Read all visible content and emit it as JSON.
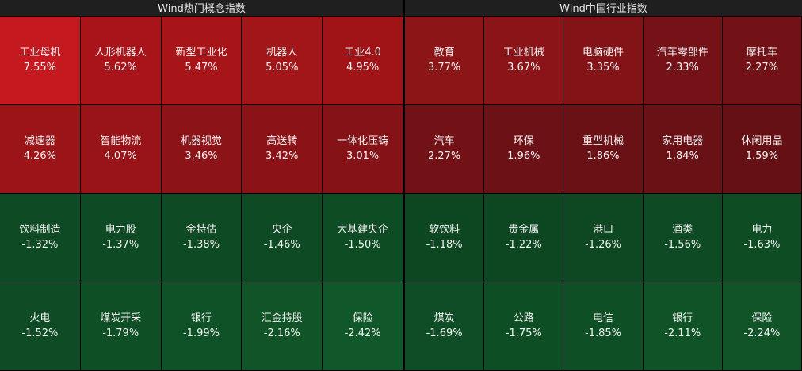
{
  "left_panel": {
    "title": "Wind热门概念指数",
    "tiles": [
      {
        "name": "工业母机",
        "pct": "7.55%",
        "color": "#c41a1f"
      },
      {
        "name": "人形机器人",
        "pct": "5.62%",
        "color": "#a9141a"
      },
      {
        "name": "新型工业化",
        "pct": "5.47%",
        "color": "#a71519"
      },
      {
        "name": "机器人",
        "pct": "5.05%",
        "color": "#a21519"
      },
      {
        "name": "工业4.0",
        "pct": "4.95%",
        "color": "#a01418"
      },
      {
        "name": "减速器",
        "pct": "4.26%",
        "color": "#9a1418"
      },
      {
        "name": "智能物流",
        "pct": "4.07%",
        "color": "#981418"
      },
      {
        "name": "机器视觉",
        "pct": "3.46%",
        "color": "#8c1318"
      },
      {
        "name": "高送转",
        "pct": "3.42%",
        "color": "#8b1318"
      },
      {
        "name": "一体化压铸",
        "pct": "3.01%",
        "color": "#851217"
      },
      {
        "name": "饮料制造",
        "pct": "-1.32%",
        "color": "#0e4a23"
      },
      {
        "name": "电力股",
        "pct": "-1.37%",
        "color": "#0e4a23"
      },
      {
        "name": "金特估",
        "pct": "-1.38%",
        "color": "#0e4a23"
      },
      {
        "name": "央企",
        "pct": "-1.46%",
        "color": "#0e4b24"
      },
      {
        "name": "大基建央企",
        "pct": "-1.50%",
        "color": "#0e4c24"
      },
      {
        "name": "火电",
        "pct": "-1.52%",
        "color": "#0f4c25"
      },
      {
        "name": "煤炭开采",
        "pct": "-1.79%",
        "color": "#0f4f25"
      },
      {
        "name": "银行",
        "pct": "-1.99%",
        "color": "#0f5227"
      },
      {
        "name": "汇金持股",
        "pct": "-2.16%",
        "color": "#105428"
      },
      {
        "name": "保险",
        "pct": "-2.42%",
        "color": "#105829"
      }
    ]
  },
  "right_panel": {
    "title": "Wind中国行业指数",
    "tiles": [
      {
        "name": "教育",
        "pct": "3.77%",
        "color": "#8c1518"
      },
      {
        "name": "工业机械",
        "pct": "3.67%",
        "color": "#8a1418"
      },
      {
        "name": "电脑硬件",
        "pct": "3.35%",
        "color": "#841318"
      },
      {
        "name": "汽车零部件",
        "pct": "2.33%",
        "color": "#741217"
      },
      {
        "name": "摩托车",
        "pct": "2.27%",
        "color": "#721216"
      },
      {
        "name": "汽车",
        "pct": "2.27%",
        "color": "#721216"
      },
      {
        "name": "环保",
        "pct": "1.96%",
        "color": "#6c1115"
      },
      {
        "name": "重型机械",
        "pct": "1.86%",
        "color": "#6a1115"
      },
      {
        "name": "家用电器",
        "pct": "1.84%",
        "color": "#691115"
      },
      {
        "name": "休闲用品",
        "pct": "1.59%",
        "color": "#651014"
      },
      {
        "name": "软饮料",
        "pct": "-1.18%",
        "color": "#0d4722"
      },
      {
        "name": "贵金属",
        "pct": "-1.22%",
        "color": "#0d4722"
      },
      {
        "name": "港口",
        "pct": "-1.26%",
        "color": "#0d4822"
      },
      {
        "name": "酒类",
        "pct": "-1.56%",
        "color": "#0e4b24"
      },
      {
        "name": "电力",
        "pct": "-1.63%",
        "color": "#0e4c24"
      },
      {
        "name": "煤炭",
        "pct": "-1.69%",
        "color": "#0e4d25"
      },
      {
        "name": "公路",
        "pct": "-1.75%",
        "color": "#0e4e25"
      },
      {
        "name": "电信",
        "pct": "-1.85%",
        "color": "#0f4f26"
      },
      {
        "name": "银行",
        "pct": "-2.11%",
        "color": "#0f5327"
      },
      {
        "name": "保险",
        "pct": "-2.24%",
        "color": "#105428"
      }
    ]
  }
}
